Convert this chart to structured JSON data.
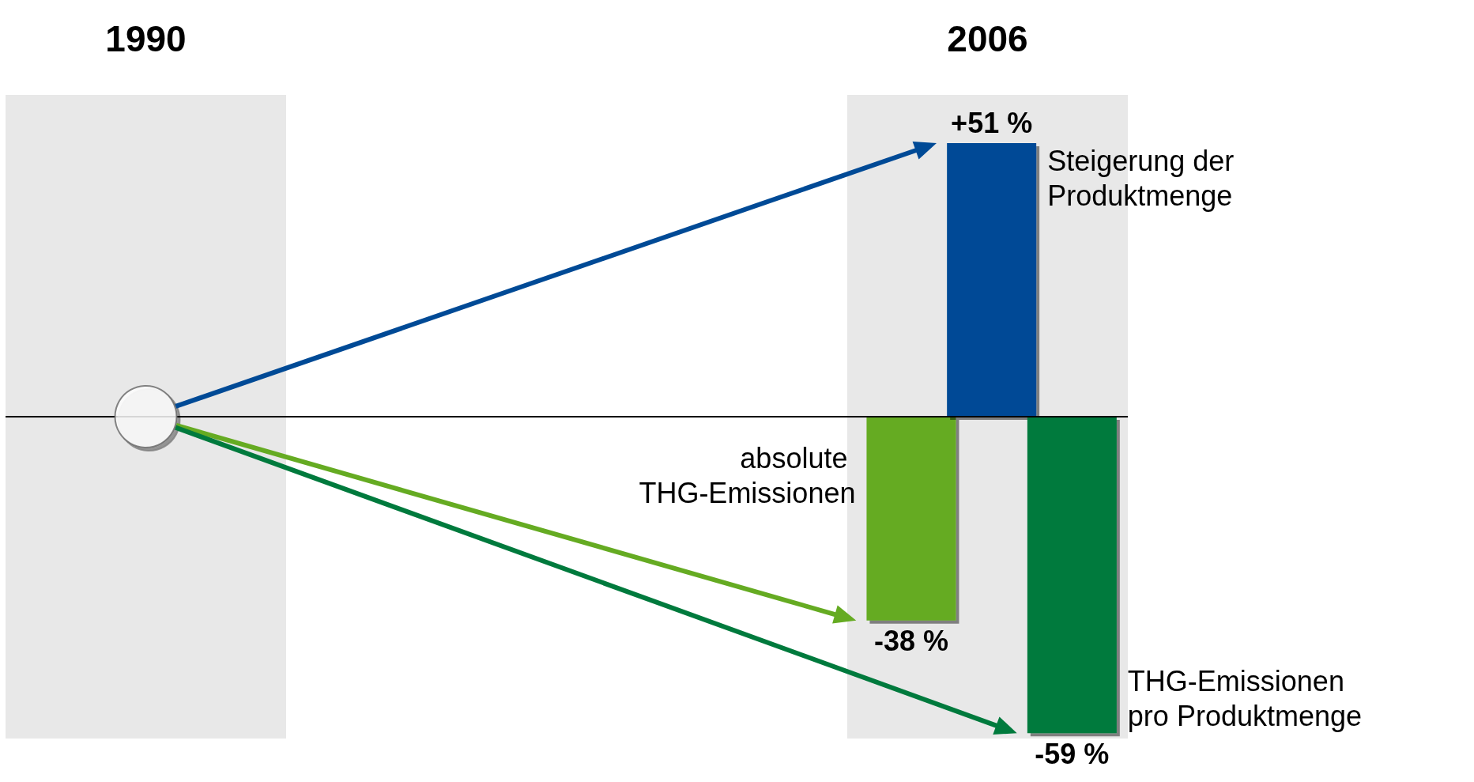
{
  "chart_data": {
    "type": "bar",
    "categories": [
      "1990",
      null,
      null,
      "2006"
    ],
    "series": [
      {
        "name": "absolute THG-Emissionen",
        "color": "#65ab22",
        "values": [
          null,
          null,
          null,
          -38
        ],
        "value_labels": [
          null,
          null,
          null,
          "-38 %"
        ]
      },
      {
        "name": "Steigerung der Produktmenge",
        "color": "#004a96",
        "values": [
          null,
          null,
          null,
          51
        ],
        "value_labels": [
          null,
          null,
          null,
          "+51 %"
        ]
      },
      {
        "name": "THG-Emissionen pro Produktmenge",
        "color": "#007a3d",
        "values": [
          null,
          null,
          null,
          -59
        ],
        "value_labels": [
          null,
          null,
          null,
          "-59 %"
        ]
      },
      {
        "type": "scatter",
        "color": "#ffffff",
        "values": [
          0,
          null,
          null,
          null
        ]
      }
    ],
    "ref_lines": [
      {
        "axis": "y",
        "value": 0,
        "color": "#000000"
      }
    ],
    "bands": [
      {
        "axis": "x",
        "from": "1990",
        "to": "1990",
        "color": "#e8e8e8"
      },
      {
        "axis": "x",
        "from": "2006",
        "to": "2006",
        "color": "#e8e8e8"
      }
    ],
    "grid": false,
    "legend": false
  }
}
